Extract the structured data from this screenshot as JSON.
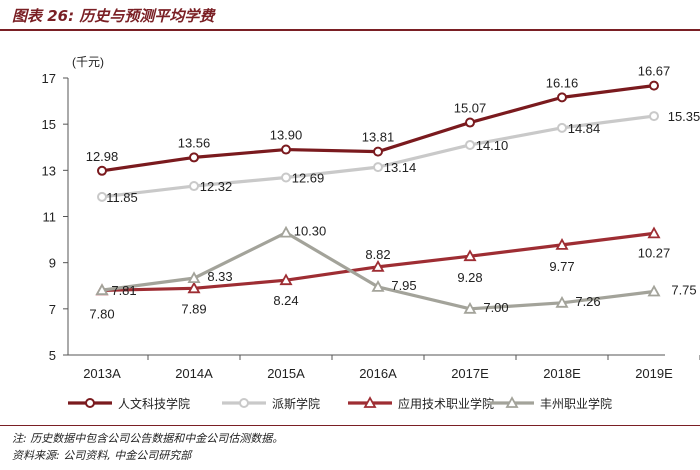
{
  "figure": {
    "title": "图表 26: 历史与预测平均学费",
    "note": "注: 历史数据中包含公司公告数据和中金公司估测数据。",
    "source": "资料来源: 公司资料, 中金公司研究部"
  },
  "colors": {
    "title": "#7a1f24",
    "series": [
      "#7a1a1e",
      "#c9c9c9",
      "#9e2d33",
      "#a3a39a"
    ]
  },
  "chart_data": {
    "type": "line",
    "unit_label": "(千元)",
    "categories": [
      "2013A",
      "2014A",
      "2015A",
      "2016A",
      "2017E",
      "2018E",
      "2019E"
    ],
    "ylim": [
      5,
      17
    ],
    "yticks": [
      5,
      7,
      9,
      11,
      13,
      15,
      17
    ],
    "grid": false,
    "legend_position": "bottom",
    "series": [
      {
        "name": "人文科技学院",
        "marker": "circle",
        "values": [
          12.98,
          13.56,
          13.9,
          13.81,
          15.07,
          16.16,
          16.67
        ],
        "labels": [
          "12.98",
          "13.56",
          "13.90",
          "13.81",
          "15.07",
          "16.16",
          "16.67"
        ]
      },
      {
        "name": "派斯学院",
        "marker": "circle",
        "values": [
          11.85,
          12.32,
          12.69,
          13.14,
          14.1,
          14.84,
          15.35
        ],
        "labels": [
          "11.85",
          "12.32",
          "12.69",
          "13.14",
          "14.10",
          "14.84",
          "15.35"
        ]
      },
      {
        "name": "应用技术职业学院",
        "marker": "triangle",
        "values": [
          7.8,
          7.89,
          8.24,
          8.82,
          9.28,
          9.77,
          10.27
        ],
        "labels": [
          "7.80",
          "7.89",
          "8.24",
          "8.82",
          "9.28",
          "9.77",
          "10.27"
        ]
      },
      {
        "name": "丰州职业学院",
        "marker": "triangle",
        "values": [
          7.81,
          8.33,
          10.3,
          7.95,
          7.0,
          7.26,
          7.75
        ],
        "labels": [
          "7.81",
          "8.33",
          "10.30",
          "7.95",
          "7.00",
          "7.26",
          "7.75"
        ]
      }
    ]
  }
}
